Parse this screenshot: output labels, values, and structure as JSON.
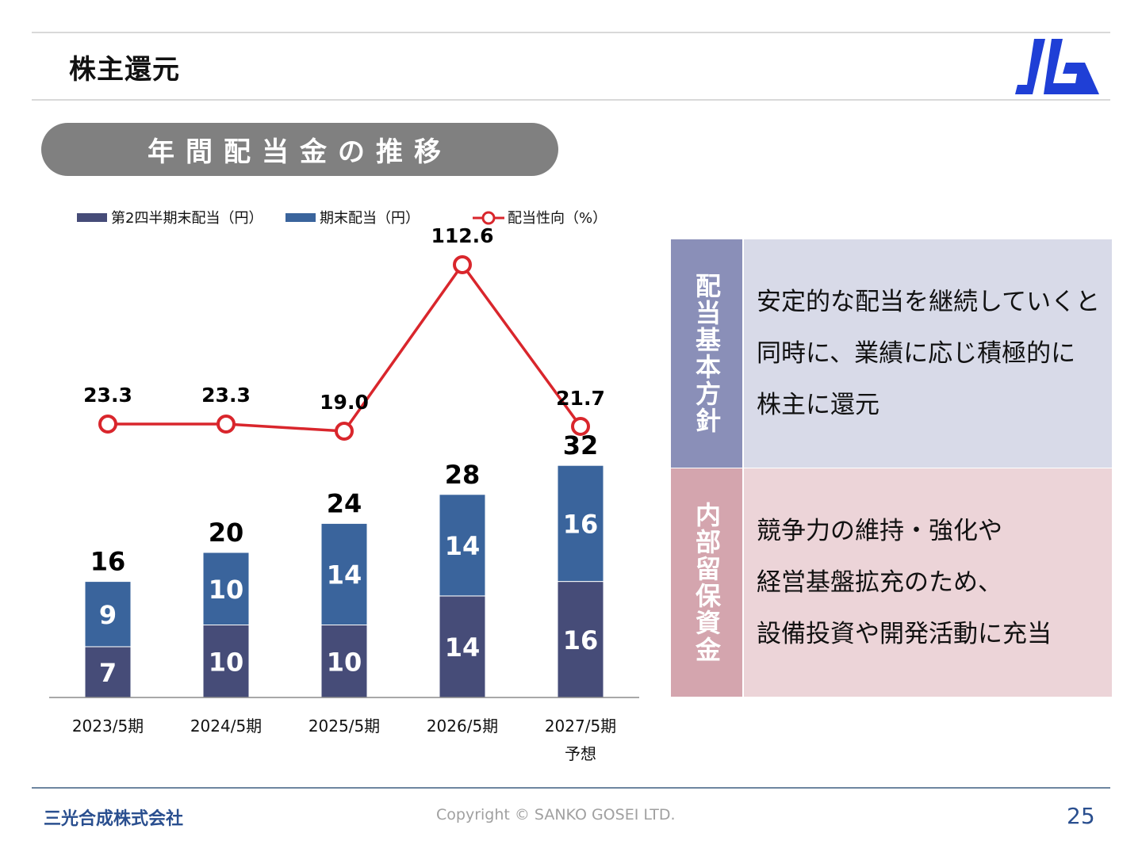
{
  "header": {
    "title": "株主還元"
  },
  "section": {
    "title": "年間配当金の推移"
  },
  "chart_data": {
    "type": "bar",
    "categories": [
      "2023/5期",
      "2024/5期",
      "2025/5期",
      "2026/5期",
      "2027/5期"
    ],
    "category_sublabels": [
      "",
      "",
      "",
      "",
      "予想"
    ],
    "series": [
      {
        "name": "第2四半期末配当（円）",
        "kind": "bar",
        "values": [
          7,
          10,
          10,
          14,
          16
        ],
        "color": "#464c78"
      },
      {
        "name": "期末配当（円）",
        "kind": "bar",
        "values": [
          9,
          10,
          14,
          14,
          16
        ],
        "color": "#3a649c"
      },
      {
        "name": "配当性向（%）",
        "kind": "line",
        "values": [
          23.3,
          23.3,
          19.0,
          112.6,
          21.7
        ],
        "color": "#d9262c"
      }
    ],
    "value_labels": {
      "q2": [
        "7",
        "10",
        "10",
        "14",
        "16"
      ],
      "year_end": [
        "9",
        "10",
        "14",
        "14",
        "16"
      ],
      "totals": [
        "16",
        "20",
        "24",
        "28",
        "32"
      ],
      "ratio": [
        "23.3",
        "23.3",
        "19.0",
        "112.6",
        "21.7"
      ]
    },
    "stacked": true,
    "legend_position": "top",
    "grid": false
  },
  "policies": [
    {
      "heading": "配当基本方針",
      "lines": [
        "安定的な配当を継続していくと",
        "同時に、業績に応じ積極的に",
        "株主に還元"
      ]
    },
    {
      "heading": "内部留保資金",
      "lines": [
        "競争力の維持・強化や",
        "経営基盤拡充のため、",
        "設備投資や開発活動に充当"
      ]
    }
  ],
  "footer": {
    "company": "三光合成株式会社",
    "copyright": "Copyright © SANKO GOSEI LTD.",
    "page": "25"
  },
  "colors": {
    "accent": "#2a4f8f",
    "logo": "#1f3fd6"
  }
}
